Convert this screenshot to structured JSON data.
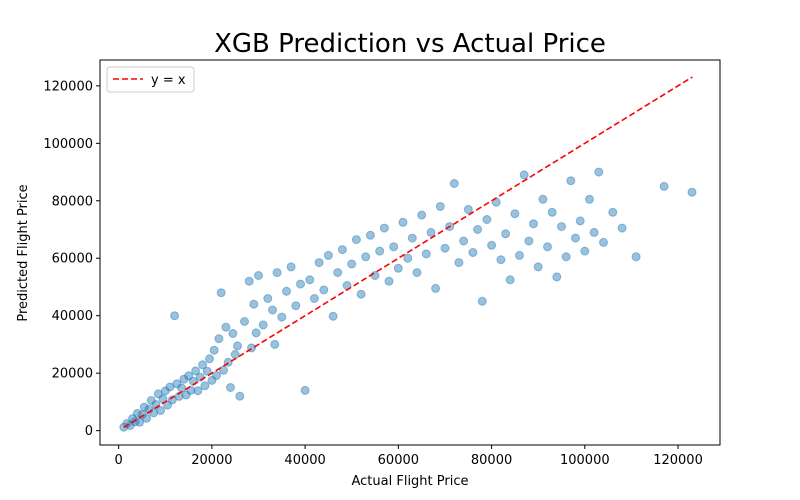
{
  "chart_data": {
    "type": "scatter",
    "title": "XGB Prediction vs Actual Price",
    "xlabel": "Actual Flight Price",
    "ylabel": "Predicted Flight Price",
    "xlim": [
      -4000,
      129000
    ],
    "ylim": [
      -5000,
      129000
    ],
    "xticks": [
      0,
      20000,
      40000,
      60000,
      80000,
      100000,
      120000
    ],
    "yticks": [
      0,
      20000,
      40000,
      60000,
      80000,
      100000,
      120000
    ],
    "grid": false,
    "legend": {
      "position": "top-left",
      "entries": [
        {
          "label": "y = x",
          "style": "dashed",
          "color": "#ff0000"
        }
      ]
    },
    "reference_line": {
      "name": "y = x",
      "from": [
        1105,
        1105
      ],
      "to": [
        123071,
        123071
      ],
      "color": "#ff0000"
    },
    "scatter_color": "#1f77b4",
    "scatter_alpha": 0.45,
    "series": [
      {
        "points": [
          [
            1105,
            1200
          ],
          [
            1800,
            2500
          ],
          [
            2500,
            1800
          ],
          [
            3000,
            4200
          ],
          [
            3500,
            3100
          ],
          [
            4000,
            6000
          ],
          [
            4500,
            2900
          ],
          [
            5000,
            5500
          ],
          [
            5500,
            8200
          ],
          [
            6000,
            4300
          ],
          [
            6500,
            7400
          ],
          [
            7000,
            10500
          ],
          [
            7500,
            6200
          ],
          [
            8000,
            9100
          ],
          [
            8500,
            12800
          ],
          [
            9000,
            7000
          ],
          [
            9500,
            11000
          ],
          [
            10000,
            13800
          ],
          [
            10500,
            8900
          ],
          [
            11000,
            15200
          ],
          [
            11500,
            10700
          ],
          [
            12000,
            40000
          ],
          [
            12500,
            16300
          ],
          [
            13000,
            11900
          ],
          [
            13500,
            14800
          ],
          [
            14000,
            17900
          ],
          [
            14500,
            12400
          ],
          [
            15000,
            19100
          ],
          [
            15500,
            14000
          ],
          [
            16000,
            17200
          ],
          [
            16500,
            20800
          ],
          [
            17000,
            13900
          ],
          [
            17500,
            18600
          ],
          [
            18000,
            22900
          ],
          [
            18500,
            15600
          ],
          [
            19000,
            20700
          ],
          [
            19500,
            25000
          ],
          [
            20000,
            17500
          ],
          [
            20500,
            28000
          ],
          [
            21000,
            19200
          ],
          [
            21500,
            32000
          ],
          [
            22000,
            48000
          ],
          [
            22500,
            21000
          ],
          [
            23000,
            36000
          ],
          [
            23500,
            23800
          ],
          [
            24000,
            15000
          ],
          [
            24500,
            33800
          ],
          [
            25000,
            26500
          ],
          [
            25500,
            29500
          ],
          [
            26000,
            12000
          ],
          [
            27000,
            38000
          ],
          [
            28000,
            52000
          ],
          [
            28500,
            28800
          ],
          [
            29000,
            44000
          ],
          [
            29500,
            34000
          ],
          [
            30000,
            54000
          ],
          [
            31000,
            36800
          ],
          [
            32000,
            46000
          ],
          [
            33000,
            42000
          ],
          [
            33500,
            30000
          ],
          [
            34000,
            55000
          ],
          [
            35000,
            39500
          ],
          [
            36000,
            48500
          ],
          [
            37000,
            57000
          ],
          [
            38000,
            43500
          ],
          [
            39000,
            51000
          ],
          [
            40000,
            14000
          ],
          [
            41000,
            52500
          ],
          [
            42000,
            46000
          ],
          [
            43000,
            58500
          ],
          [
            44000,
            49000
          ],
          [
            45000,
            61000
          ],
          [
            46000,
            39800
          ],
          [
            47000,
            55000
          ],
          [
            48000,
            63000
          ],
          [
            49000,
            50500
          ],
          [
            50000,
            58000
          ],
          [
            51000,
            66500
          ],
          [
            52000,
            47500
          ],
          [
            53000,
            60500
          ],
          [
            54000,
            68000
          ],
          [
            55000,
            54000
          ],
          [
            56000,
            62500
          ],
          [
            57000,
            70500
          ],
          [
            58000,
            52000
          ],
          [
            59000,
            64000
          ],
          [
            60000,
            56500
          ],
          [
            61000,
            72500
          ],
          [
            62000,
            60000
          ],
          [
            63000,
            67000
          ],
          [
            64000,
            55000
          ],
          [
            65000,
            75000
          ],
          [
            66000,
            61500
          ],
          [
            67000,
            69000
          ],
          [
            68000,
            49500
          ],
          [
            69000,
            78000
          ],
          [
            70000,
            63500
          ],
          [
            71000,
            71000
          ],
          [
            72000,
            86000
          ],
          [
            73000,
            58500
          ],
          [
            74000,
            66000
          ],
          [
            75000,
            77000
          ],
          [
            76000,
            62000
          ],
          [
            77000,
            70000
          ],
          [
            78000,
            45000
          ],
          [
            79000,
            73500
          ],
          [
            80000,
            64500
          ],
          [
            81000,
            79500
          ],
          [
            82000,
            59500
          ],
          [
            83000,
            68500
          ],
          [
            84000,
            52500
          ],
          [
            85000,
            75500
          ],
          [
            86000,
            61000
          ],
          [
            87000,
            89000
          ],
          [
            88000,
            66000
          ],
          [
            89000,
            72000
          ],
          [
            90000,
            57000
          ],
          [
            91000,
            80500
          ],
          [
            92000,
            64000
          ],
          [
            93000,
            76000
          ],
          [
            94000,
            53500
          ],
          [
            95000,
            71000
          ],
          [
            96000,
            60500
          ],
          [
            97000,
            87000
          ],
          [
            98000,
            67000
          ],
          [
            99000,
            73000
          ],
          [
            100000,
            62500
          ],
          [
            101000,
            80500
          ],
          [
            102000,
            69000
          ],
          [
            103000,
            90000
          ],
          [
            104000,
            65500
          ],
          [
            106000,
            76000
          ],
          [
            108000,
            70500
          ],
          [
            111000,
            60500
          ],
          [
            117000,
            85000
          ],
          [
            123000,
            83000
          ]
        ]
      }
    ]
  }
}
